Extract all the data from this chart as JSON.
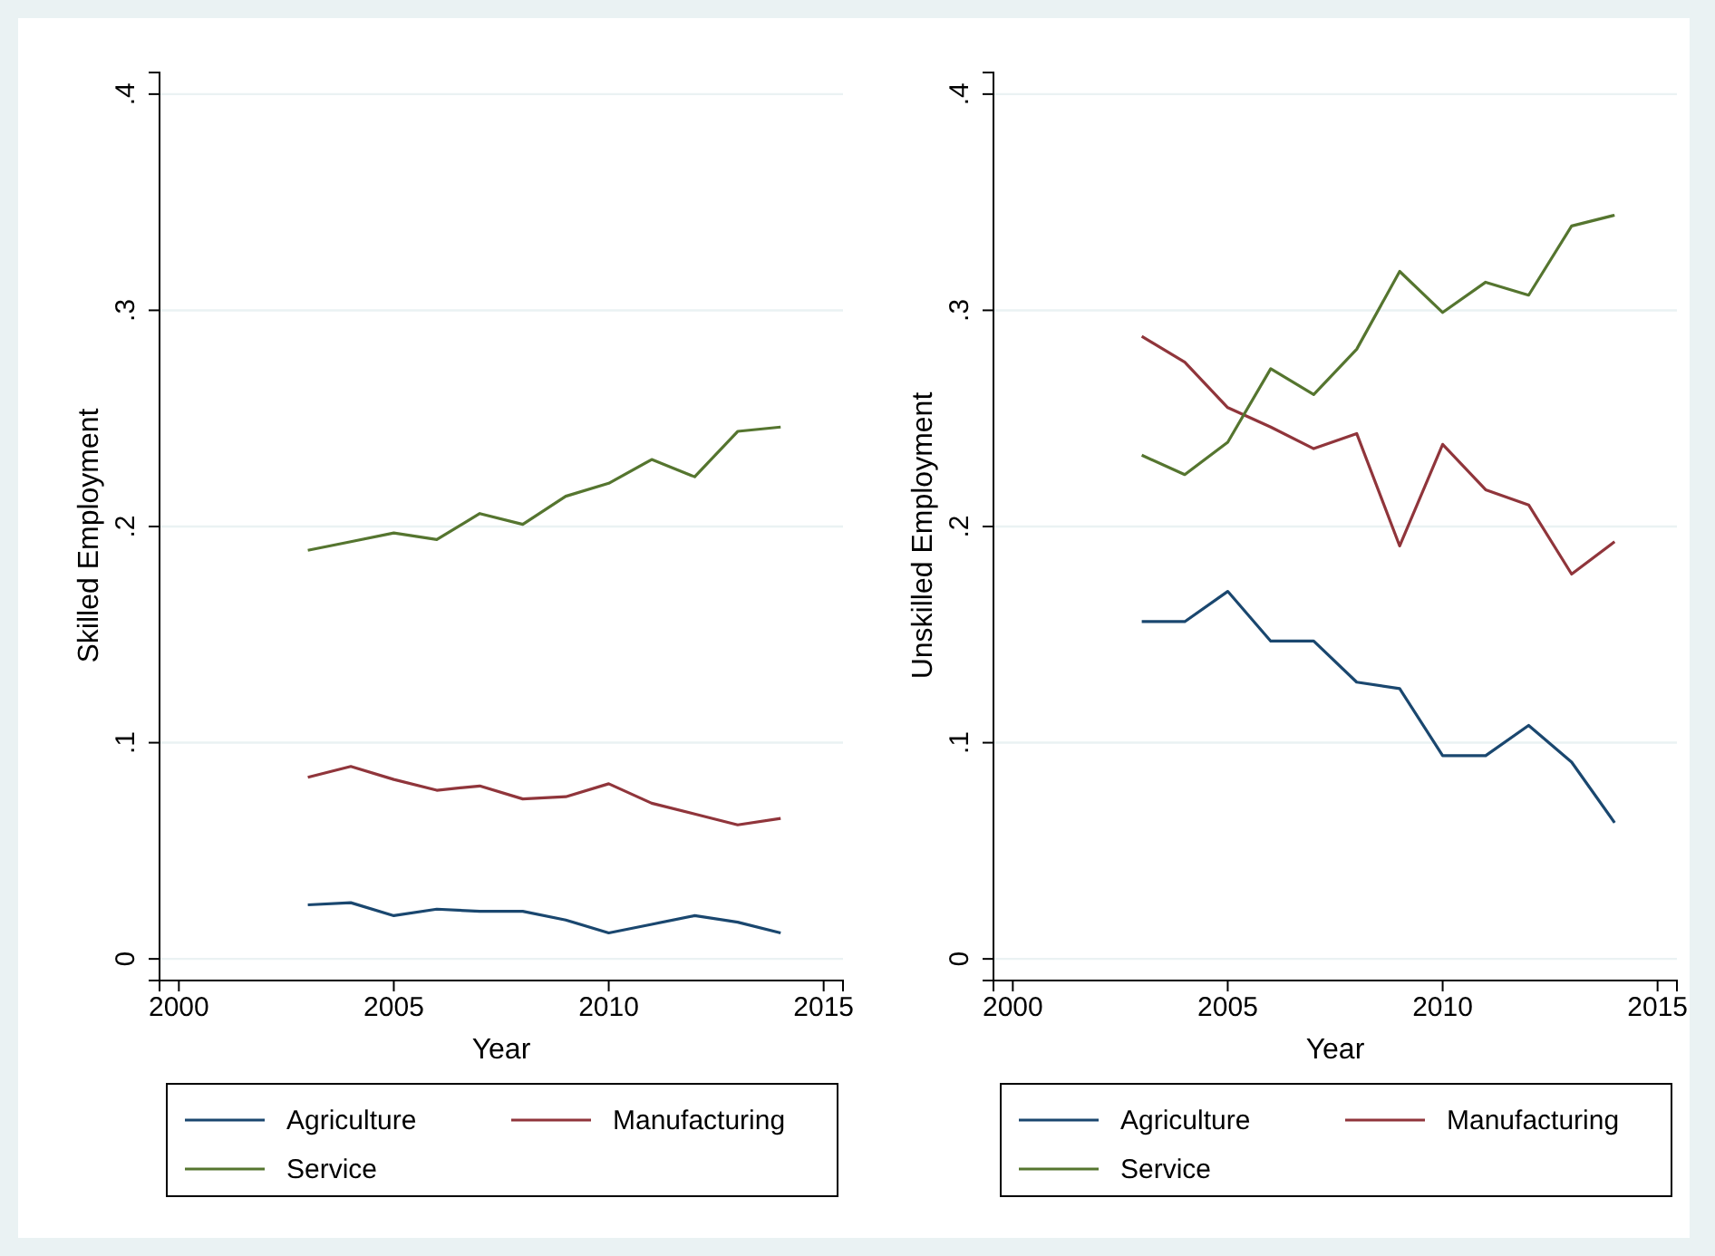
{
  "chart_data": [
    {
      "type": "line",
      "ylabel": "Skilled Employment",
      "xlabel": "Year",
      "x": [
        2003,
        2004,
        2005,
        2006,
        2007,
        2008,
        2009,
        2010,
        2011,
        2012,
        2013,
        2014
      ],
      "xlim": [
        1999.55,
        2015.45
      ],
      "xticks": [
        2000,
        2005,
        2010,
        2015
      ],
      "ylim": [
        -0.01,
        0.41
      ],
      "yticks": [
        {
          "value": 0,
          "label": "0"
        },
        {
          "value": 0.1,
          "label": ".1"
        },
        {
          "value": 0.2,
          "label": ".2"
        },
        {
          "value": 0.3,
          "label": ".3"
        },
        {
          "value": 0.4,
          "label": ".4"
        }
      ],
      "grid": "y",
      "legend": "bottom",
      "series": [
        {
          "name": "Agriculture",
          "color": "#1a476f",
          "values": [
            0.025,
            0.026,
            0.02,
            0.023,
            0.022,
            0.022,
            0.018,
            0.012,
            0.016,
            0.02,
            0.017,
            0.012
          ]
        },
        {
          "name": "Manufacturing",
          "color": "#90353b",
          "values": [
            0.084,
            0.089,
            0.083,
            0.078,
            0.08,
            0.074,
            0.075,
            0.081,
            0.072,
            0.067,
            0.062,
            0.065
          ]
        },
        {
          "name": "Service",
          "color": "#55752f",
          "values": [
            0.189,
            0.193,
            0.197,
            0.194,
            0.206,
            0.201,
            0.214,
            0.22,
            0.231,
            0.223,
            0.244,
            0.246
          ]
        }
      ]
    },
    {
      "type": "line",
      "ylabel": "Unskilled Employment",
      "xlabel": "Year",
      "x": [
        2003,
        2004,
        2005,
        2006,
        2007,
        2008,
        2009,
        2010,
        2011,
        2012,
        2013,
        2014
      ],
      "xlim": [
        1999.55,
        2015.45
      ],
      "xticks": [
        2000,
        2005,
        2010,
        2015
      ],
      "ylim": [
        -0.01,
        0.41
      ],
      "yticks": [
        {
          "value": 0,
          "label": "0"
        },
        {
          "value": 0.1,
          "label": ".1"
        },
        {
          "value": 0.2,
          "label": ".2"
        },
        {
          "value": 0.3,
          "label": ".3"
        },
        {
          "value": 0.4,
          "label": ".4"
        }
      ],
      "grid": "y",
      "legend": "bottom",
      "series": [
        {
          "name": "Agriculture",
          "color": "#1a476f",
          "values": [
            0.156,
            0.156,
            0.17,
            0.147,
            0.147,
            0.128,
            0.125,
            0.094,
            0.094,
            0.108,
            0.091,
            0.063
          ]
        },
        {
          "name": "Manufacturing",
          "color": "#90353b",
          "values": [
            0.288,
            0.276,
            0.255,
            0.246,
            0.236,
            0.243,
            0.191,
            0.238,
            0.217,
            0.21,
            0.178,
            0.193
          ]
        },
        {
          "name": "Service",
          "color": "#55752f",
          "values": [
            0.233,
            0.224,
            0.239,
            0.273,
            0.261,
            0.282,
            0.318,
            0.299,
            0.313,
            0.307,
            0.339,
            0.344
          ]
        }
      ]
    }
  ]
}
